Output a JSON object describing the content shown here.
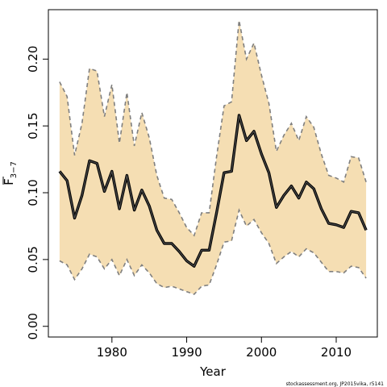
{
  "chart_data": {
    "type": "line",
    "xlabel": "Year",
    "ylabel_main": "F",
    "ylabel_sub": "3−7",
    "xlim": [
      1971.5,
      2015.5
    ],
    "ylim": [
      -0.008,
      0.237
    ],
    "xticks": [
      1980,
      1990,
      2000,
      2010
    ],
    "yticks": [
      0.0,
      0.05,
      0.1,
      0.15,
      0.2
    ],
    "ytick_labels": [
      "0.00",
      "0.05",
      "0.10",
      "0.15",
      "0.20"
    ],
    "grid": false,
    "footnote": "stockassessment.org, JP2015vika, r5141",
    "colors": {
      "band_fill": "#f5deb3",
      "band_edge": "#7f7f7f",
      "estimate_line": "#4d4d4d"
    },
    "years": [
      1973,
      1974,
      1975,
      1976,
      1977,
      1978,
      1979,
      1980,
      1981,
      1982,
      1983,
      1984,
      1985,
      1986,
      1987,
      1988,
      1989,
      1990,
      1991,
      1992,
      1993,
      1994,
      1995,
      1996,
      1997,
      1998,
      1999,
      2000,
      2001,
      2002,
      2003,
      2004,
      2005,
      2006,
      2007,
      2008,
      2009,
      2010,
      2011,
      2012,
      2013,
      2014
    ],
    "series": [
      {
        "role": "estimate",
        "values": [
          0.116,
          0.109,
          0.081,
          0.098,
          0.124,
          0.122,
          0.101,
          0.116,
          0.088,
          0.113,
          0.087,
          0.102,
          0.09,
          0.072,
          0.062,
          0.062,
          0.056,
          0.049,
          0.045,
          0.057,
          0.057,
          0.085,
          0.115,
          0.116,
          0.158,
          0.139,
          0.146,
          0.129,
          0.115,
          0.089,
          0.098,
          0.105,
          0.096,
          0.108,
          0.103,
          0.088,
          0.077,
          0.076,
          0.074,
          0.086,
          0.085,
          0.072
        ]
      },
      {
        "role": "upper",
        "values": [
          0.183,
          0.172,
          0.128,
          0.152,
          0.193,
          0.191,
          0.157,
          0.181,
          0.137,
          0.175,
          0.135,
          0.16,
          0.141,
          0.113,
          0.096,
          0.095,
          0.085,
          0.074,
          0.068,
          0.085,
          0.085,
          0.127,
          0.165,
          0.168,
          0.229,
          0.2,
          0.212,
          0.188,
          0.167,
          0.131,
          0.143,
          0.152,
          0.139,
          0.157,
          0.149,
          0.129,
          0.113,
          0.111,
          0.108,
          0.127,
          0.126,
          0.108
        ]
      },
      {
        "role": "lower",
        "values": [
          0.049,
          0.046,
          0.035,
          0.043,
          0.054,
          0.052,
          0.043,
          0.05,
          0.038,
          0.05,
          0.038,
          0.046,
          0.04,
          0.032,
          0.029,
          0.03,
          0.028,
          0.026,
          0.024,
          0.03,
          0.031,
          0.046,
          0.063,
          0.064,
          0.087,
          0.075,
          0.08,
          0.07,
          0.062,
          0.047,
          0.052,
          0.056,
          0.052,
          0.058,
          0.055,
          0.048,
          0.041,
          0.041,
          0.04,
          0.045,
          0.044,
          0.036
        ]
      }
    ]
  }
}
